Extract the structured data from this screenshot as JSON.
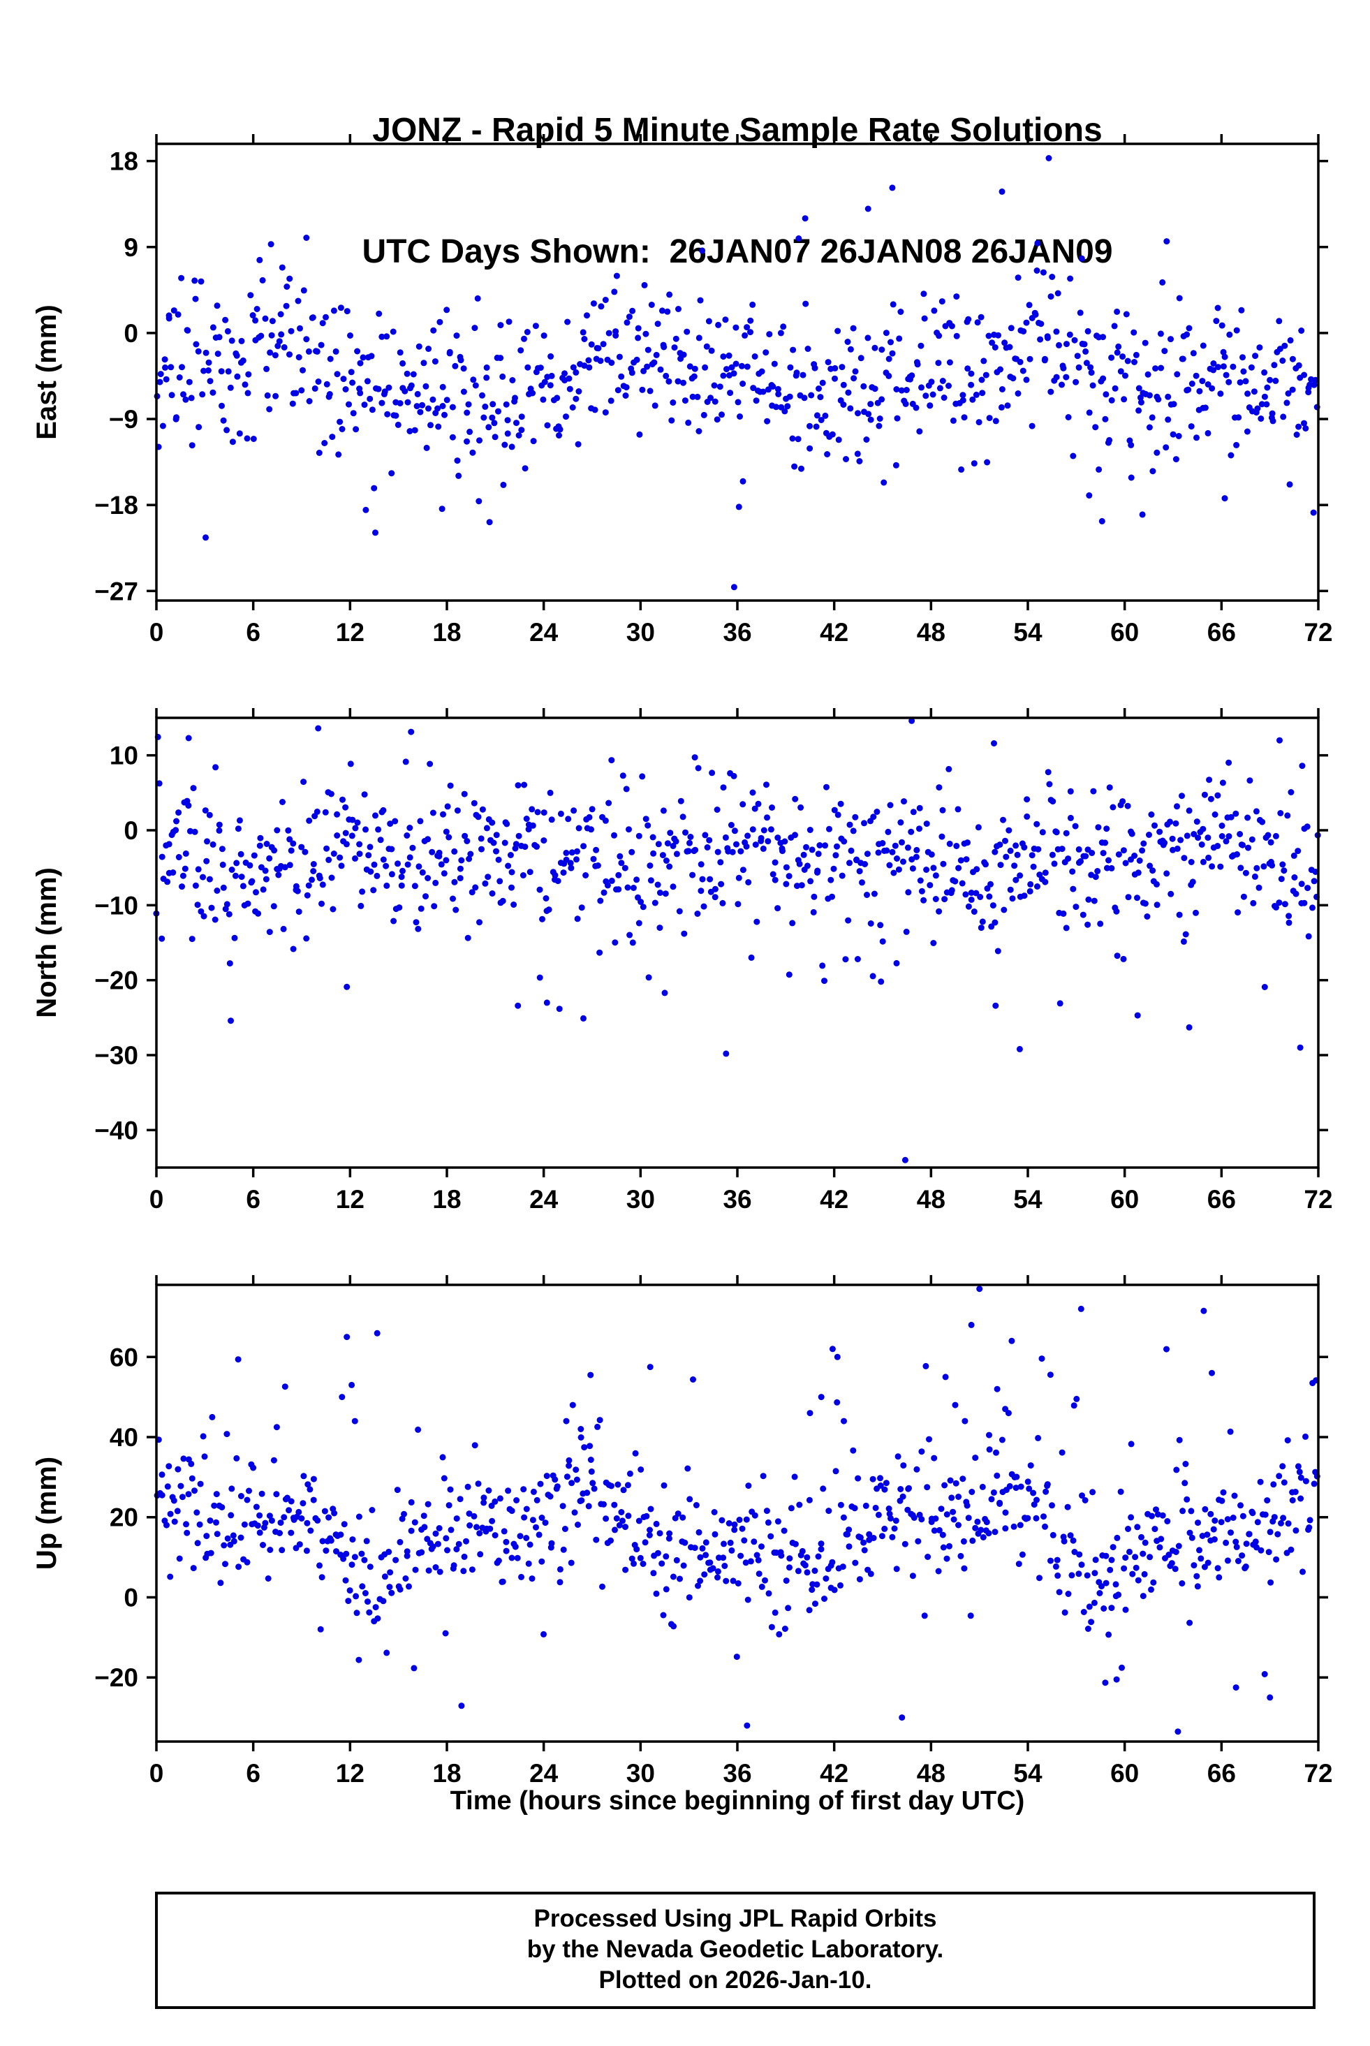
{
  "title": {
    "line1": "JONZ - Rapid 5 Minute Sample Rate Solutions",
    "line2": "UTC Days Shown:  26JAN07 26JAN08 26JAN09"
  },
  "xlabel": "Time (hours since beginning of first day UTC)",
  "footer": {
    "line1": "Processed Using JPL Rapid Orbits",
    "line2": "by the Nevada Geodetic Laboratory.",
    "line3": "Plotted on 2026-Jan-10."
  },
  "marker_color": "#0000e6",
  "chart_data": [
    {
      "type": "scatter",
      "ylabel": "East (mm)",
      "xlim": [
        0,
        72
      ],
      "ylim": [
        -28,
        19.8
      ],
      "xticks": [
        0,
        6,
        12,
        18,
        24,
        30,
        36,
        42,
        48,
        54,
        60,
        66,
        72
      ],
      "yticks": [
        -27,
        -18,
        -9,
        0,
        9,
        18
      ],
      "n_points": 820,
      "seed": 11,
      "base": -4.3,
      "std": 4.0,
      "waves": [
        {
          "amp": 2.2,
          "period": 24,
          "phase": 0.0
        },
        {
          "amp": 1.3,
          "period": 9.5,
          "phase": 2.0
        }
      ],
      "tails": [
        {
          "p": 0.012,
          "lo": 6,
          "hi": 13
        },
        {
          "p": 0.012,
          "lo": -13,
          "hi": -6
        }
      ],
      "outliers": [
        [
          35.8,
          -26.6
        ],
        [
          55.3,
          18.3
        ],
        [
          40.2,
          12.0
        ],
        [
          45.6,
          15.2
        ],
        [
          52.4,
          14.8
        ],
        [
          44.1,
          13.0
        ],
        [
          39.8,
          9.9
        ],
        [
          17.7,
          -18.4
        ],
        [
          58.6,
          -19.7
        ],
        [
          61.1,
          -19.0
        ],
        [
          71.7,
          -18.8
        ],
        [
          62.6,
          9.6
        ],
        [
          54.6,
          9.4
        ],
        [
          7.1,
          9.3
        ],
        [
          66.2,
          -17.3
        ],
        [
          57.8,
          -17.0
        ],
        [
          36.1,
          -18.2
        ],
        [
          21.5,
          -15.9
        ]
      ]
    },
    {
      "type": "scatter",
      "ylabel": "North (mm)",
      "xlim": [
        0,
        72
      ],
      "ylim": [
        -45,
        15
      ],
      "xticks": [
        0,
        6,
        12,
        18,
        24,
        30,
        36,
        42,
        48,
        54,
        60,
        66,
        72
      ],
      "yticks": [
        -40,
        -30,
        -20,
        -10,
        0,
        10
      ],
      "n_points": 830,
      "seed": 23,
      "base": -4.0,
      "std": 4.6,
      "waves": [
        {
          "amp": 1.0,
          "period": 24,
          "phase": 4.0
        },
        {
          "amp": 1.0,
          "period": 11,
          "phase": 1.0
        }
      ],
      "tails": [
        {
          "p": 0.02,
          "lo": -20,
          "hi": -8
        },
        {
          "p": 0.01,
          "lo": 7,
          "hi": 13
        }
      ],
      "outliers": [
        [
          46.8,
          14.6
        ],
        [
          46.4,
          -44.0
        ],
        [
          35.3,
          -29.8
        ],
        [
          53.5,
          -29.2
        ],
        [
          64.0,
          -26.3
        ],
        [
          60.8,
          -24.7
        ],
        [
          56.0,
          -23.1
        ],
        [
          52.0,
          -23.4
        ],
        [
          22.4,
          -23.4
        ],
        [
          11.8,
          -20.9
        ],
        [
          44.9,
          -20.2
        ],
        [
          69.6,
          12.0
        ],
        [
          2.0,
          12.3
        ],
        [
          51.9,
          11.6
        ],
        [
          71.0,
          8.6
        ],
        [
          31.5,
          -21.7
        ],
        [
          24.2,
          -23.0
        ]
      ]
    },
    {
      "type": "scatter",
      "ylabel": "Up (mm)",
      "xlim": [
        0,
        72
      ],
      "ylim": [
        -36,
        78
      ],
      "xticks": [
        0,
        6,
        12,
        18,
        24,
        30,
        36,
        42,
        48,
        54,
        60,
        66,
        72
      ],
      "yticks": [
        -20,
        0,
        20,
        40,
        60
      ],
      "n_points": 820,
      "seed": 37,
      "base": 16,
      "std": 8.0,
      "waves": [
        {
          "amp": 7,
          "period": 23,
          "phase": 0.75
        },
        {
          "amp": 4,
          "period": 9,
          "phase": 1.5
        }
      ],
      "tails": [
        {
          "p": 0.03,
          "lo": 16,
          "hi": 38
        },
        {
          "p": 0.02,
          "lo": -38,
          "hi": -16
        }
      ],
      "outliers": [
        [
          51.0,
          77.0
        ],
        [
          50.5,
          68.0
        ],
        [
          53.0,
          64.0
        ],
        [
          57.3,
          72.0
        ],
        [
          64.9,
          71.5
        ],
        [
          11.8,
          65.0
        ],
        [
          41.9,
          62.0
        ],
        [
          42.2,
          60.0
        ],
        [
          26.9,
          55.5
        ],
        [
          30.6,
          57.5
        ],
        [
          65.4,
          56.0
        ],
        [
          48.9,
          55.0
        ],
        [
          12.1,
          53.0
        ],
        [
          52.1,
          52.0
        ],
        [
          49.5,
          48.0
        ],
        [
          50.1,
          44.0
        ],
        [
          51.6,
          40.5
        ],
        [
          52.6,
          47.0
        ],
        [
          40.5,
          46.0
        ],
        [
          41.2,
          50.0
        ],
        [
          42.6,
          44.0
        ],
        [
          25.4,
          44.0
        ],
        [
          25.8,
          48.0
        ],
        [
          26.3,
          42.0
        ],
        [
          11.5,
          50.0
        ],
        [
          12.3,
          44.0
        ],
        [
          63.3,
          -33.5
        ],
        [
          36.6,
          -32.0
        ],
        [
          46.2,
          -30.0
        ],
        [
          69.0,
          -25.0
        ],
        [
          66.9,
          -22.5
        ],
        [
          58.8,
          -21.3
        ],
        [
          59.5,
          -20.5
        ]
      ]
    }
  ]
}
